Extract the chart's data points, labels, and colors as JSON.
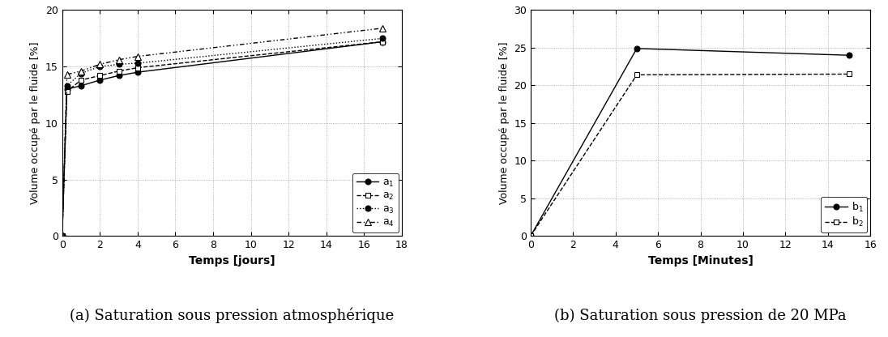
{
  "left": {
    "xlabel": "Temps [jours]",
    "ylabel": "Volume occupé par le fluide [%]",
    "xlim": [
      0,
      18
    ],
    "ylim": [
      0,
      20
    ],
    "xticks": [
      0,
      2,
      4,
      6,
      8,
      10,
      12,
      14,
      16,
      18
    ],
    "yticks": [
      0,
      5,
      10,
      15,
      20
    ],
    "caption": "(a) Saturation sous pression atmosphérique",
    "series": {
      "a1": {
        "x": [
          0,
          0.25,
          1,
          2,
          3,
          4,
          17
        ],
        "y": [
          0,
          13.0,
          13.3,
          13.8,
          14.2,
          14.5,
          17.2
        ],
        "linestyle": "solid",
        "marker": "o",
        "markerfacecolor": "black",
        "color": "black",
        "label": "a",
        "sub": "1",
        "markersize": 5
      },
      "a2": {
        "x": [
          0,
          0.25,
          1,
          2,
          3,
          4,
          17
        ],
        "y": [
          0,
          12.8,
          13.8,
          14.2,
          14.6,
          14.9,
          17.2
        ],
        "linestyle": "dashed",
        "marker": "s",
        "markerfacecolor": "white",
        "color": "black",
        "label": "a",
        "sub": "2",
        "markersize": 5
      },
      "a3": {
        "x": [
          0,
          0.25,
          1,
          2,
          3,
          4,
          17
        ],
        "y": [
          0,
          13.3,
          14.4,
          15.0,
          15.2,
          15.3,
          17.5
        ],
        "linestyle": "dotted",
        "marker": "o",
        "markerfacecolor": "black",
        "color": "black",
        "label": "a",
        "sub": "3",
        "markersize": 5
      },
      "a4": {
        "x": [
          0,
          0.25,
          1,
          2,
          3,
          4,
          17
        ],
        "y": [
          0,
          14.3,
          14.6,
          15.2,
          15.6,
          15.9,
          18.4
        ],
        "linestyle": "dotted",
        "marker": "^",
        "markerfacecolor": "white",
        "color": "black",
        "label": "a",
        "sub": "4",
        "markersize": 6
      }
    }
  },
  "right": {
    "xlabel": "Temps [Minutes]",
    "ylabel": "Volume occupé par le fluide [%]",
    "xlim": [
      0,
      16
    ],
    "ylim": [
      0,
      30
    ],
    "xticks": [
      0,
      2,
      4,
      6,
      8,
      10,
      12,
      14,
      16
    ],
    "yticks": [
      0,
      5,
      10,
      15,
      20,
      25,
      30
    ],
    "caption": "(b) Saturation sous pression de 20 MPa",
    "series": {
      "b1": {
        "x": [
          0,
          5,
          15
        ],
        "y": [
          0,
          24.9,
          24.0
        ],
        "linestyle": "solid",
        "marker": "o",
        "markerfacecolor": "black",
        "color": "black",
        "label": "b",
        "sub": "1",
        "markersize": 5
      },
      "b2": {
        "x": [
          0,
          5,
          15
        ],
        "y": [
          0,
          21.4,
          21.5
        ],
        "linestyle": "dashed",
        "marker": "s",
        "markerfacecolor": "white",
        "color": "black",
        "label": "b",
        "sub": "2",
        "markersize": 5
      }
    }
  }
}
